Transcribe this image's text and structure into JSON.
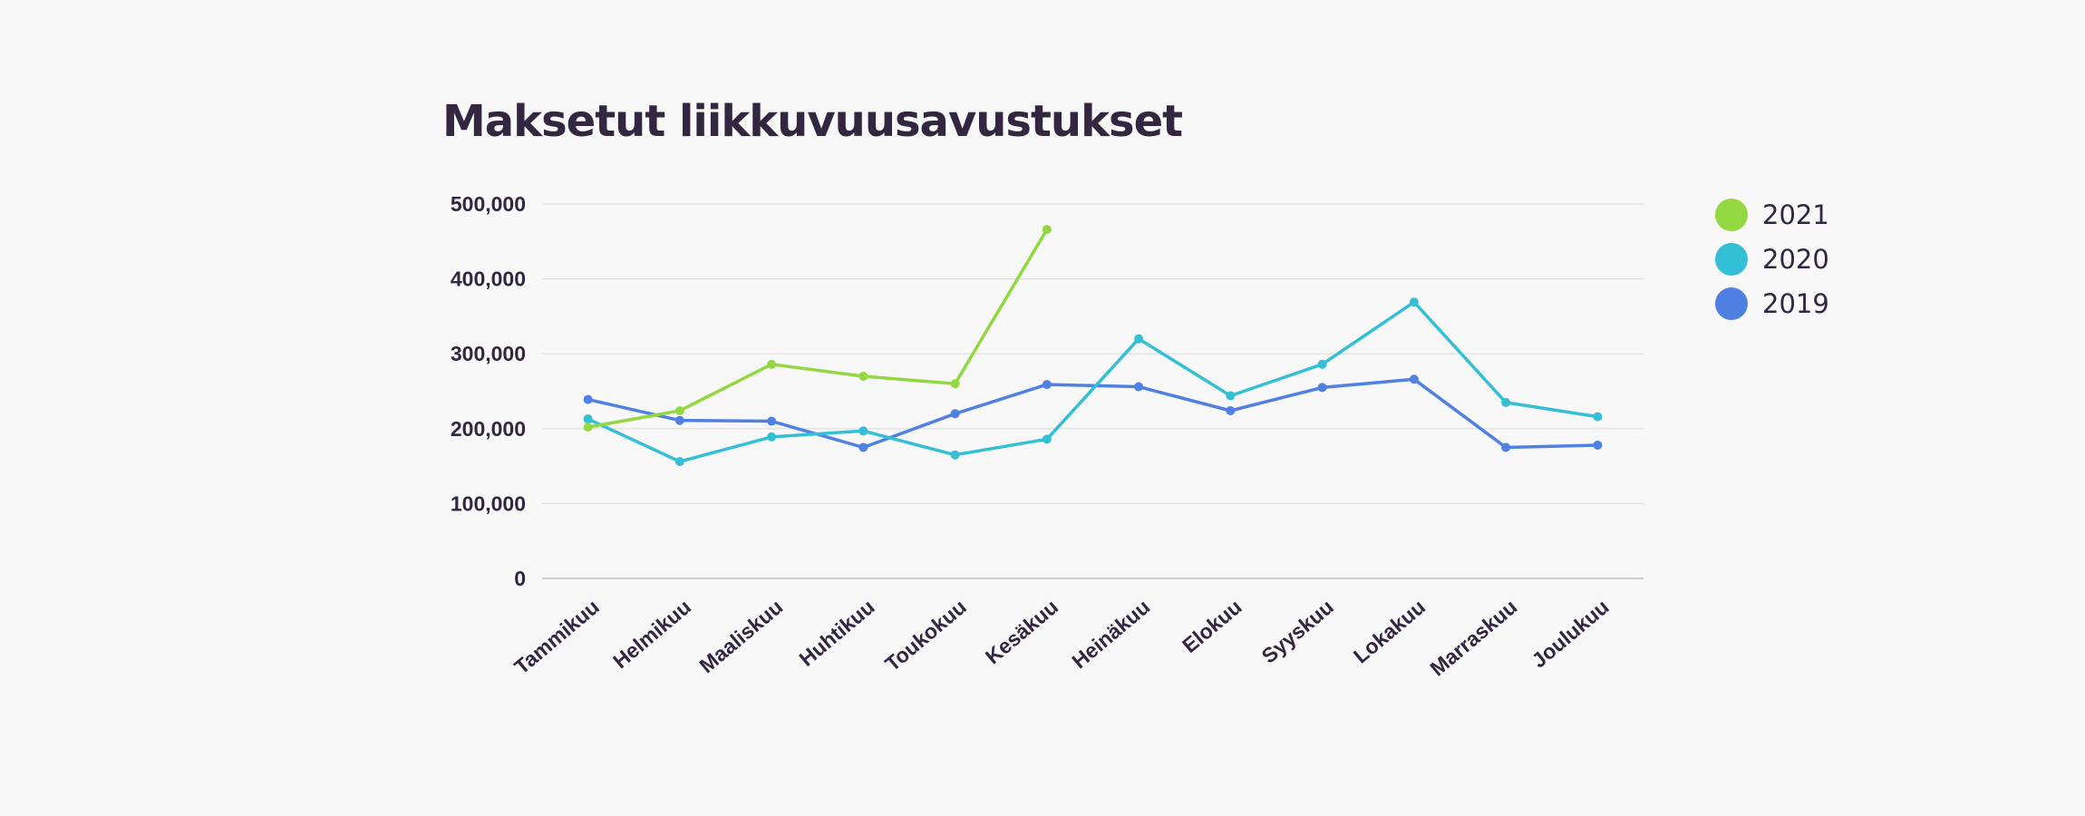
{
  "chart_data": {
    "type": "line",
    "title": "Maksetut liikkuvuusavustukset",
    "xlabel": "",
    "ylabel": "",
    "categories": [
      "Tammikuu",
      "Helmikuu",
      "Maaliskuu",
      "Huhtikuu",
      "Toukokuu",
      "Kesäkuu",
      "Heinäkuu",
      "Elokuu",
      "Syyskuu",
      "Lokakuu",
      "Marraskuu",
      "Joulukuu"
    ],
    "ylim": [
      0,
      500000
    ],
    "yticks": [
      "0",
      "100,000",
      "200,000",
      "300,000",
      "400,000",
      "500,000"
    ],
    "grid": true,
    "legend_position": "top-right",
    "series": [
      {
        "name": "2021",
        "color": "#93d841",
        "values": [
          202000,
          224000,
          286000,
          270000,
          260000,
          466000,
          null,
          null,
          null,
          null,
          null,
          null
        ]
      },
      {
        "name": "2020",
        "color": "#33bfd6",
        "values": [
          213000,
          156000,
          189000,
          197000,
          165000,
          186000,
          320000,
          244000,
          286000,
          369000,
          235000,
          216000
        ]
      },
      {
        "name": "2019",
        "color": "#4f80e2",
        "values": [
          239000,
          211000,
          210000,
          175000,
          220000,
          259000,
          256000,
          224000,
          255000,
          266000,
          175000,
          178000
        ]
      }
    ]
  }
}
